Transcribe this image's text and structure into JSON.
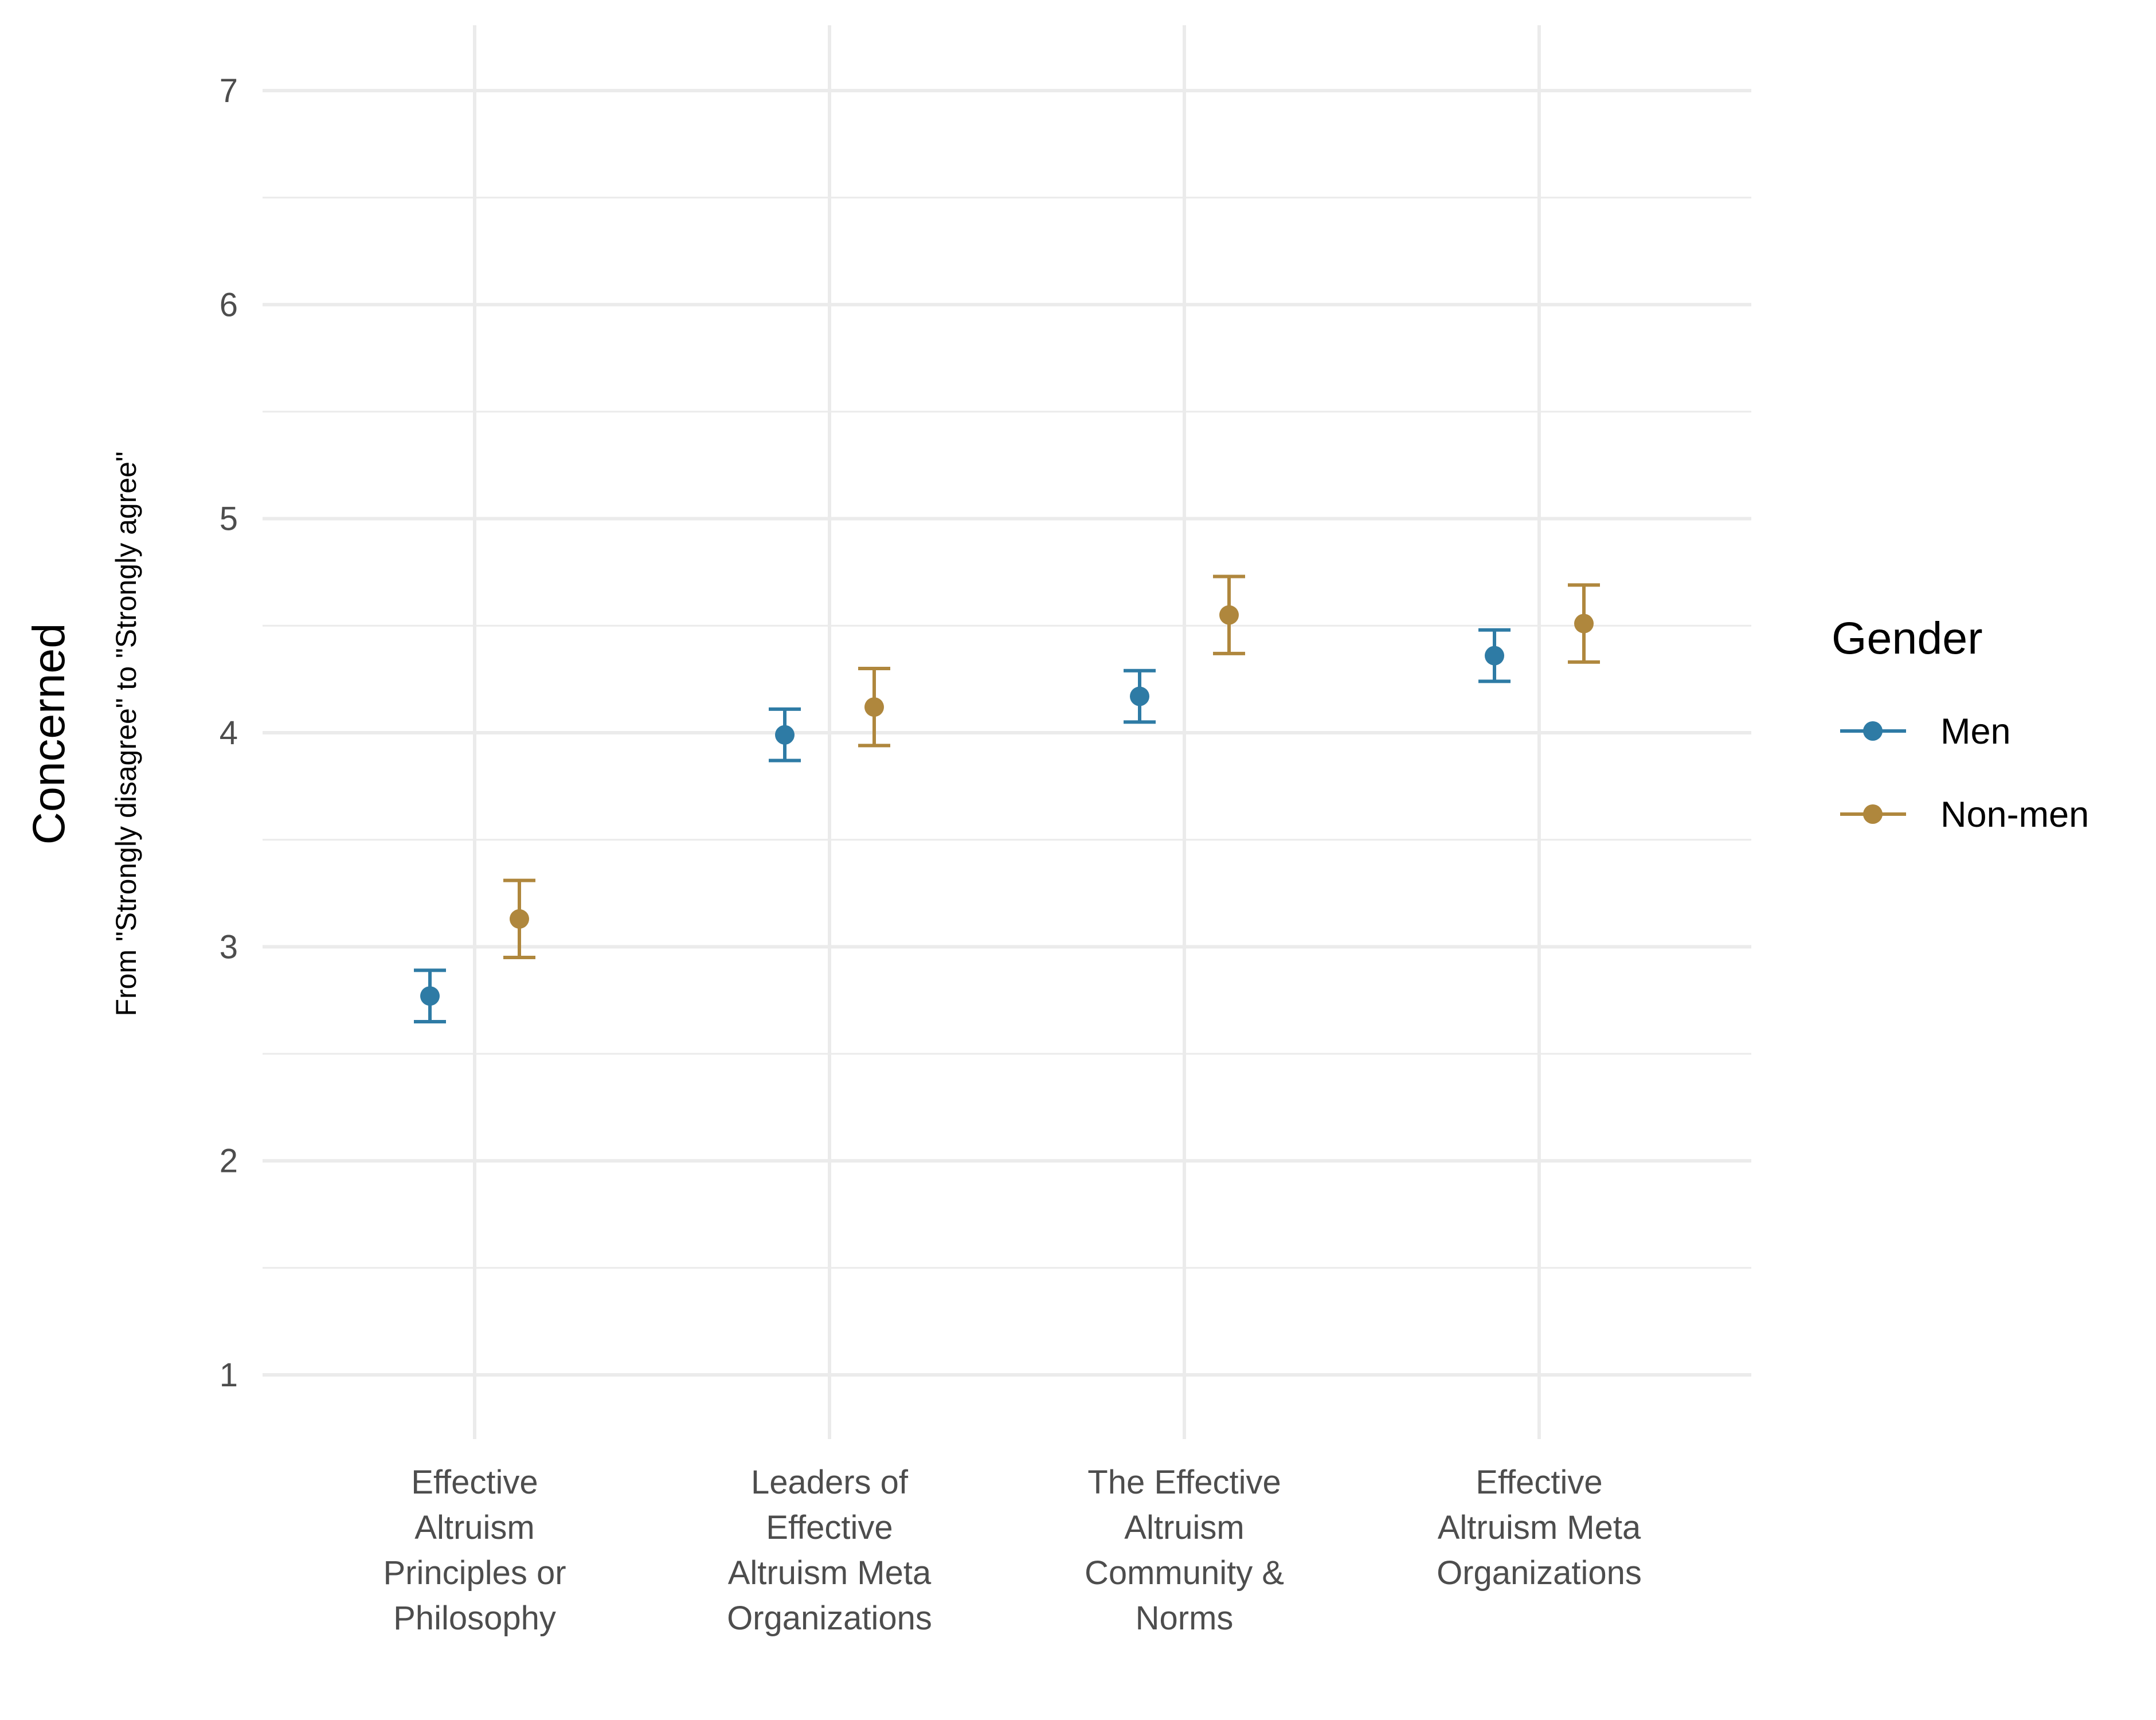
{
  "chart_data": {
    "type": "scatter",
    "subtype": "point-with-errorbars",
    "categories": [
      "Effective Altruism Principles or Philosophy",
      "Leaders of Effective Altruism Meta Organizations",
      "The Effective Altruism Community & Norms",
      "Effective Altruism Meta Organizations"
    ],
    "category_label_lines": [
      [
        "Effective",
        "Altruism",
        "Principles or",
        "Philosophy"
      ],
      [
        "Leaders of",
        "Effective",
        "Altruism Meta",
        "Organizations"
      ],
      [
        "The Effective",
        "Altruism",
        "Community &",
        "Norms"
      ],
      [
        "Effective",
        "Altruism Meta",
        "Organizations"
      ]
    ],
    "series": [
      {
        "name": "Men",
        "color": "#2E7BA5",
        "values": [
          2.77,
          3.99,
          4.17,
          4.36
        ],
        "lower": [
          2.65,
          3.87,
          4.05,
          4.24
        ],
        "upper": [
          2.89,
          4.11,
          4.29,
          4.48
        ]
      },
      {
        "name": "Non-men",
        "color": "#AF873D",
        "values": [
          3.13,
          4.12,
          4.55,
          4.51
        ],
        "lower": [
          2.95,
          3.94,
          4.37,
          4.33
        ],
        "upper": [
          3.31,
          4.3,
          4.73,
          4.69
        ]
      }
    ],
    "ylabel": "Concerned",
    "ysublabel": "From \"Strongly disagree\" to \"Strongly agree\"",
    "xlabel": "",
    "ylim": [
      0.7,
      7.3
    ],
    "yticks": [
      1,
      2,
      3,
      4,
      5,
      6,
      7
    ],
    "yticks_text": [
      "1",
      "2",
      "3",
      "4",
      "5",
      "6",
      "7"
    ],
    "grid": true,
    "legend": {
      "title": "Gender",
      "position": "right"
    }
  }
}
